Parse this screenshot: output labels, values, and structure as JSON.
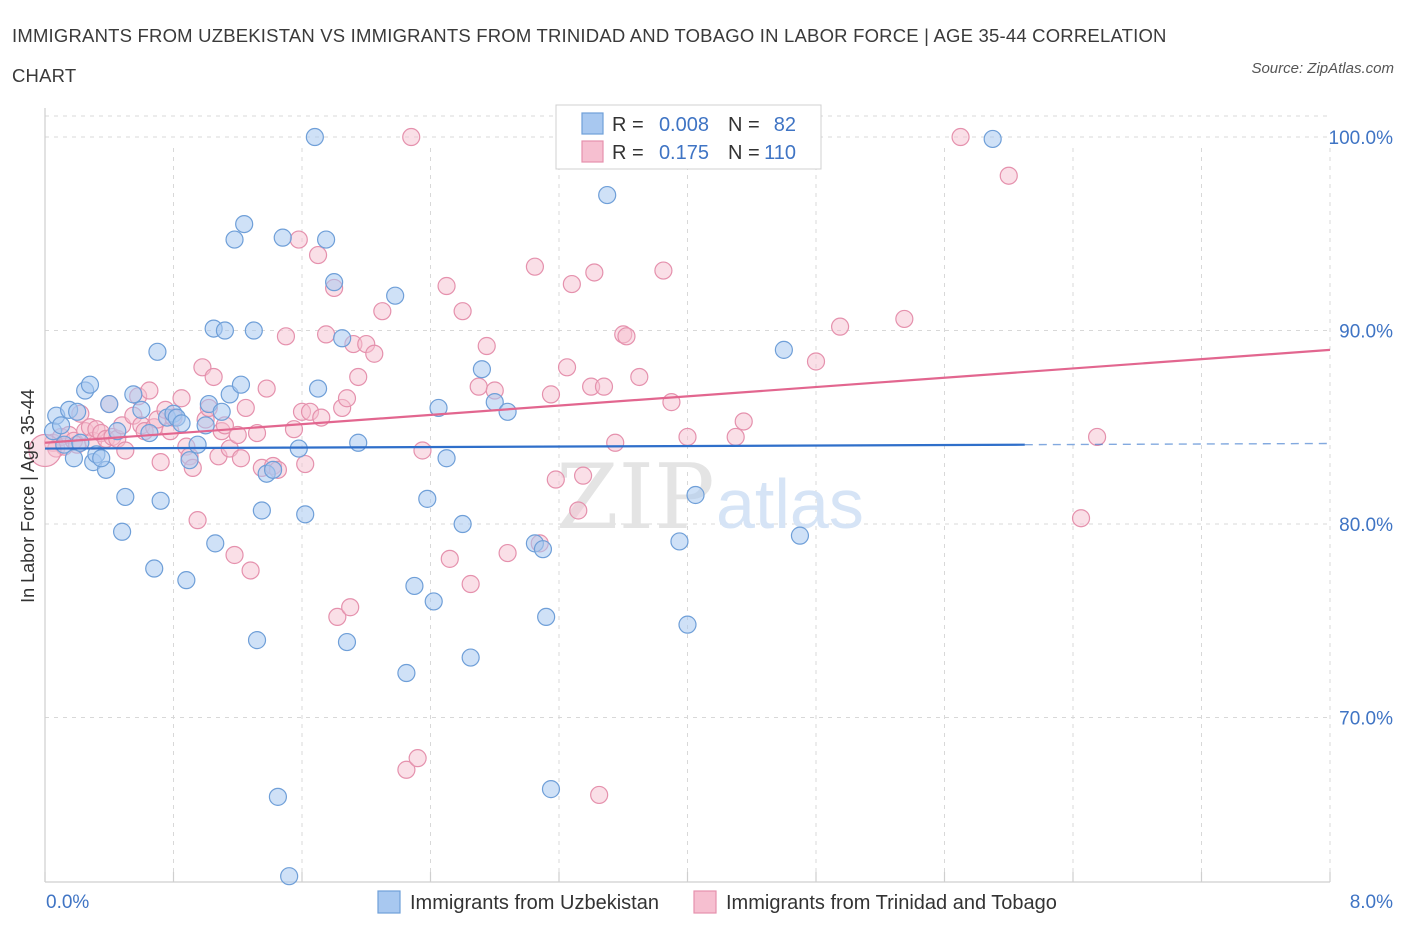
{
  "title": "IMMIGRANTS FROM UZBEKISTAN VS IMMIGRANTS FROM TRINIDAD AND TOBAGO IN LABOR FORCE | AGE 35-44 CORRELATION CHART",
  "source": "Source: ZipAtlas.com",
  "watermark": {
    "zip": "ZIP",
    "atlas": "atlas"
  },
  "colors": {
    "blue_fill": "#a8c8f0",
    "blue_stroke": "#6f9fd8",
    "blue_line": "#2f6fca",
    "pink_fill": "#f6bfd0",
    "pink_stroke": "#e591ad",
    "pink_line": "#e2668f",
    "axis_label": "#3f74c4",
    "grid": "#d8d8d8"
  },
  "stats": {
    "r_label": "R =",
    "n_label": "N =",
    "blue": {
      "r": "0.008",
      "n": "82"
    },
    "pink": {
      "r": "0.175",
      "n": "110"
    }
  },
  "chart_data": {
    "type": "scatter",
    "xlabel": "",
    "ylabel": "In Labor Force | Age 35-44",
    "xlim": [
      0.0,
      8.0
    ],
    "ylim": [
      61.5,
      101.5
    ],
    "x_tick_labels": [
      "0.0%",
      "8.0%"
    ],
    "y_ticks": [
      70.0,
      80.0,
      90.0,
      100.0
    ],
    "y_tick_labels": [
      "70.0%",
      "80.0%",
      "90.0%",
      "100.0%"
    ],
    "grid": true,
    "legend_position": "bottom",
    "series": [
      {
        "name": "Immigrants from Uzbekistan",
        "color": "#a8c8f0",
        "trend": {
          "x": [
            0.0,
            6.1
          ],
          "y": [
            83.9,
            84.1
          ],
          "dashed_to_x": 8.0
        },
        "points": [
          [
            0.05,
            84.8
          ],
          [
            0.07,
            85.6
          ],
          [
            0.1,
            85.1
          ],
          [
            0.12,
            84.1
          ],
          [
            0.15,
            85.9
          ],
          [
            0.18,
            83.4
          ],
          [
            0.2,
            85.8
          ],
          [
            0.22,
            84.2
          ],
          [
            0.25,
            86.9
          ],
          [
            0.28,
            87.2
          ],
          [
            0.3,
            83.2
          ],
          [
            0.32,
            83.6
          ],
          [
            0.38,
            82.8
          ],
          [
            0.4,
            86.2
          ],
          [
            0.45,
            84.8
          ],
          [
            0.48,
            79.6
          ],
          [
            0.5,
            81.4
          ],
          [
            0.55,
            86.7
          ],
          [
            0.6,
            85.9
          ],
          [
            0.65,
            84.7
          ],
          [
            0.68,
            77.7
          ],
          [
            0.7,
            88.9
          ],
          [
            0.72,
            81.2
          ],
          [
            0.76,
            85.5
          ],
          [
            0.8,
            85.7
          ],
          [
            0.82,
            85.5
          ],
          [
            0.85,
            85.2
          ],
          [
            0.88,
            77.1
          ],
          [
            0.9,
            83.3
          ],
          [
            0.95,
            84.1
          ],
          [
            1.0,
            85.1
          ],
          [
            1.02,
            86.2
          ],
          [
            1.05,
            90.1
          ],
          [
            1.06,
            79.0
          ],
          [
            1.1,
            85.8
          ],
          [
            1.12,
            90.0
          ],
          [
            1.15,
            86.7
          ],
          [
            1.18,
            94.7
          ],
          [
            1.22,
            87.2
          ],
          [
            1.24,
            95.5
          ],
          [
            1.3,
            90.0
          ],
          [
            1.32,
            74.0
          ],
          [
            1.35,
            80.7
          ],
          [
            1.38,
            82.6
          ],
          [
            1.42,
            82.8
          ],
          [
            1.45,
            65.9
          ],
          [
            1.48,
            94.8
          ],
          [
            1.52,
            61.8
          ],
          [
            1.58,
            83.9
          ],
          [
            1.62,
            80.5
          ],
          [
            1.68,
            100.0
          ],
          [
            1.7,
            87.0
          ],
          [
            1.75,
            94.7
          ],
          [
            1.8,
            92.5
          ],
          [
            1.85,
            89.6
          ],
          [
            1.88,
            73.9
          ],
          [
            1.95,
            84.2
          ],
          [
            2.18,
            91.8
          ],
          [
            2.25,
            72.3
          ],
          [
            2.3,
            76.8
          ],
          [
            2.38,
            81.3
          ],
          [
            2.42,
            76.0
          ],
          [
            2.45,
            86.0
          ],
          [
            2.5,
            83.4
          ],
          [
            2.6,
            80.0
          ],
          [
            2.65,
            73.1
          ],
          [
            2.72,
            88.0
          ],
          [
            2.8,
            86.3
          ],
          [
            2.88,
            85.8
          ],
          [
            3.05,
            79.0
          ],
          [
            3.1,
            78.7
          ],
          [
            3.12,
            75.2
          ],
          [
            3.15,
            66.3
          ],
          [
            3.5,
            100.0
          ],
          [
            3.5,
            97.0
          ],
          [
            3.95,
            79.1
          ],
          [
            4.0,
            74.8
          ],
          [
            4.05,
            81.5
          ],
          [
            4.6,
            89.0
          ],
          [
            4.7,
            79.4
          ],
          [
            5.9,
            99.9
          ],
          [
            0.35,
            83.4
          ]
        ]
      },
      {
        "name": "Immigrants from Trinidad and Tobago",
        "color": "#f6bfd0",
        "trend": {
          "x": [
            0.0,
            8.0
          ],
          "y": [
            84.2,
            89.0
          ]
        },
        "points": [
          [
            0.05,
            84.2
          ],
          [
            0.07,
            83.9
          ],
          [
            0.1,
            84.5
          ],
          [
            0.12,
            84.0
          ],
          [
            0.15,
            84.6
          ],
          [
            0.18,
            84.3
          ],
          [
            0.2,
            84.1
          ],
          [
            0.22,
            85.7
          ],
          [
            0.25,
            84.8
          ],
          [
            0.28,
            85.0
          ],
          [
            0.3,
            84.3
          ],
          [
            0.32,
            84.9
          ],
          [
            0.35,
            84.7
          ],
          [
            0.38,
            84.4
          ],
          [
            0.4,
            86.2
          ],
          [
            0.42,
            84.5
          ],
          [
            0.45,
            84.4
          ],
          [
            0.48,
            85.1
          ],
          [
            0.5,
            83.8
          ],
          [
            0.55,
            85.6
          ],
          [
            0.58,
            86.6
          ],
          [
            0.6,
            85.1
          ],
          [
            0.62,
            84.8
          ],
          [
            0.65,
            86.9
          ],
          [
            0.68,
            85.0
          ],
          [
            0.7,
            85.4
          ],
          [
            0.72,
            83.2
          ],
          [
            0.75,
            85.9
          ],
          [
            0.78,
            84.8
          ],
          [
            0.8,
            85.5
          ],
          [
            0.85,
            86.5
          ],
          [
            0.88,
            84.0
          ],
          [
            0.9,
            83.5
          ],
          [
            0.92,
            82.9
          ],
          [
            0.95,
            80.2
          ],
          [
            0.98,
            88.1
          ],
          [
            1.0,
            85.4
          ],
          [
            1.02,
            86.0
          ],
          [
            1.05,
            87.6
          ],
          [
            1.08,
            83.5
          ],
          [
            1.1,
            84.8
          ],
          [
            1.12,
            85.1
          ],
          [
            1.15,
            83.9
          ],
          [
            1.18,
            78.4
          ],
          [
            1.2,
            84.6
          ],
          [
            1.22,
            83.4
          ],
          [
            1.25,
            86.0
          ],
          [
            1.28,
            77.6
          ],
          [
            1.32,
            84.7
          ],
          [
            1.35,
            82.9
          ],
          [
            1.38,
            87.0
          ],
          [
            1.42,
            83.0
          ],
          [
            1.45,
            82.8
          ],
          [
            1.5,
            89.7
          ],
          [
            1.55,
            84.9
          ],
          [
            1.58,
            94.7
          ],
          [
            1.6,
            85.8
          ],
          [
            1.62,
            83.1
          ],
          [
            1.65,
            85.8
          ],
          [
            1.7,
            93.9
          ],
          [
            1.72,
            85.5
          ],
          [
            1.75,
            89.8
          ],
          [
            1.8,
            92.2
          ],
          [
            1.82,
            75.2
          ],
          [
            1.85,
            86.0
          ],
          [
            1.88,
            86.5
          ],
          [
            1.9,
            75.7
          ],
          [
            1.92,
            89.3
          ],
          [
            1.95,
            87.6
          ],
          [
            2.0,
            89.3
          ],
          [
            2.05,
            88.8
          ],
          [
            2.1,
            91.0
          ],
          [
            2.25,
            67.3
          ],
          [
            2.28,
            100.0
          ],
          [
            2.32,
            67.9
          ],
          [
            2.35,
            83.8
          ],
          [
            2.5,
            92.3
          ],
          [
            2.52,
            78.2
          ],
          [
            2.6,
            91.0
          ],
          [
            2.65,
            76.9
          ],
          [
            2.7,
            87.1
          ],
          [
            2.75,
            89.2
          ],
          [
            2.8,
            86.9
          ],
          [
            2.88,
            78.5
          ],
          [
            3.05,
            93.3
          ],
          [
            3.08,
            79.0
          ],
          [
            3.15,
            86.7
          ],
          [
            3.18,
            82.3
          ],
          [
            3.25,
            88.1
          ],
          [
            3.28,
            92.4
          ],
          [
            3.32,
            80.7
          ],
          [
            3.35,
            82.5
          ],
          [
            3.4,
            87.1
          ],
          [
            3.42,
            93.0
          ],
          [
            3.45,
            66.0
          ],
          [
            3.48,
            87.1
          ],
          [
            3.55,
            84.2
          ],
          [
            3.6,
            89.8
          ],
          [
            3.62,
            89.7
          ],
          [
            3.7,
            87.6
          ],
          [
            3.85,
            93.1
          ],
          [
            3.9,
            86.3
          ],
          [
            4.0,
            84.5
          ],
          [
            4.3,
            84.5
          ],
          [
            4.35,
            85.3
          ],
          [
            4.8,
            88.4
          ],
          [
            4.95,
            90.2
          ],
          [
            5.35,
            90.6
          ],
          [
            5.7,
            100.0
          ],
          [
            6.0,
            98.0
          ],
          [
            6.45,
            80.3
          ],
          [
            6.55,
            84.5
          ],
          [
            0.0,
            83.8
          ]
        ]
      }
    ]
  }
}
